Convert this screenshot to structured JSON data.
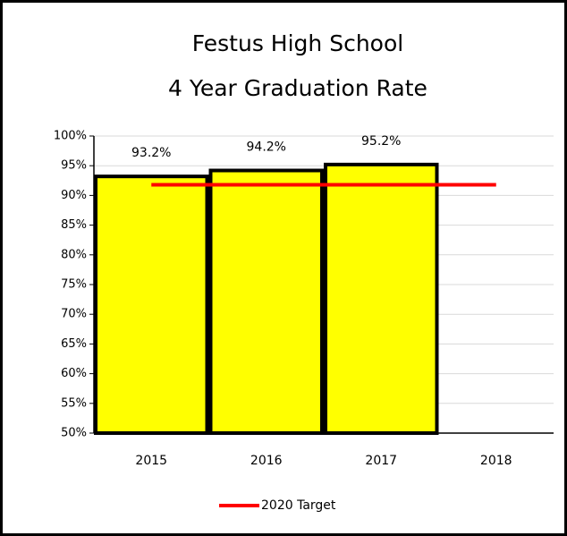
{
  "chart_data": {
    "type": "bar",
    "title": "Festus High School",
    "subtitle": "4 Year Graduation Rate",
    "categories": [
      "2015",
      "2016",
      "2017",
      "2018"
    ],
    "values": [
      93.2,
      94.2,
      95.2,
      null
    ],
    "value_labels": [
      "93.2%",
      "94.2%",
      "95.2%",
      null
    ],
    "color": "#ffff00",
    "series": [
      {
        "name": "2020 Target",
        "type": "line",
        "color": "#ff0000",
        "values": [
          91.8,
          91.8,
          91.8,
          91.8
        ]
      }
    ],
    "ylim": [
      50,
      100
    ],
    "yticks": [
      {
        "value": 50,
        "label": "50%"
      },
      {
        "value": 55,
        "label": "55%"
      },
      {
        "value": 60,
        "label": "60%"
      },
      {
        "value": 65,
        "label": "65%"
      },
      {
        "value": 70,
        "label": "70%"
      },
      {
        "value": 75,
        "label": "75%"
      },
      {
        "value": 80,
        "label": "80%"
      },
      {
        "value": 85,
        "label": "85%"
      },
      {
        "value": 90,
        "label": "90%"
      },
      {
        "value": 95,
        "label": "95%"
      },
      {
        "value": 100,
        "label": "100%"
      }
    ],
    "grid": true,
    "legend": "bottom"
  }
}
